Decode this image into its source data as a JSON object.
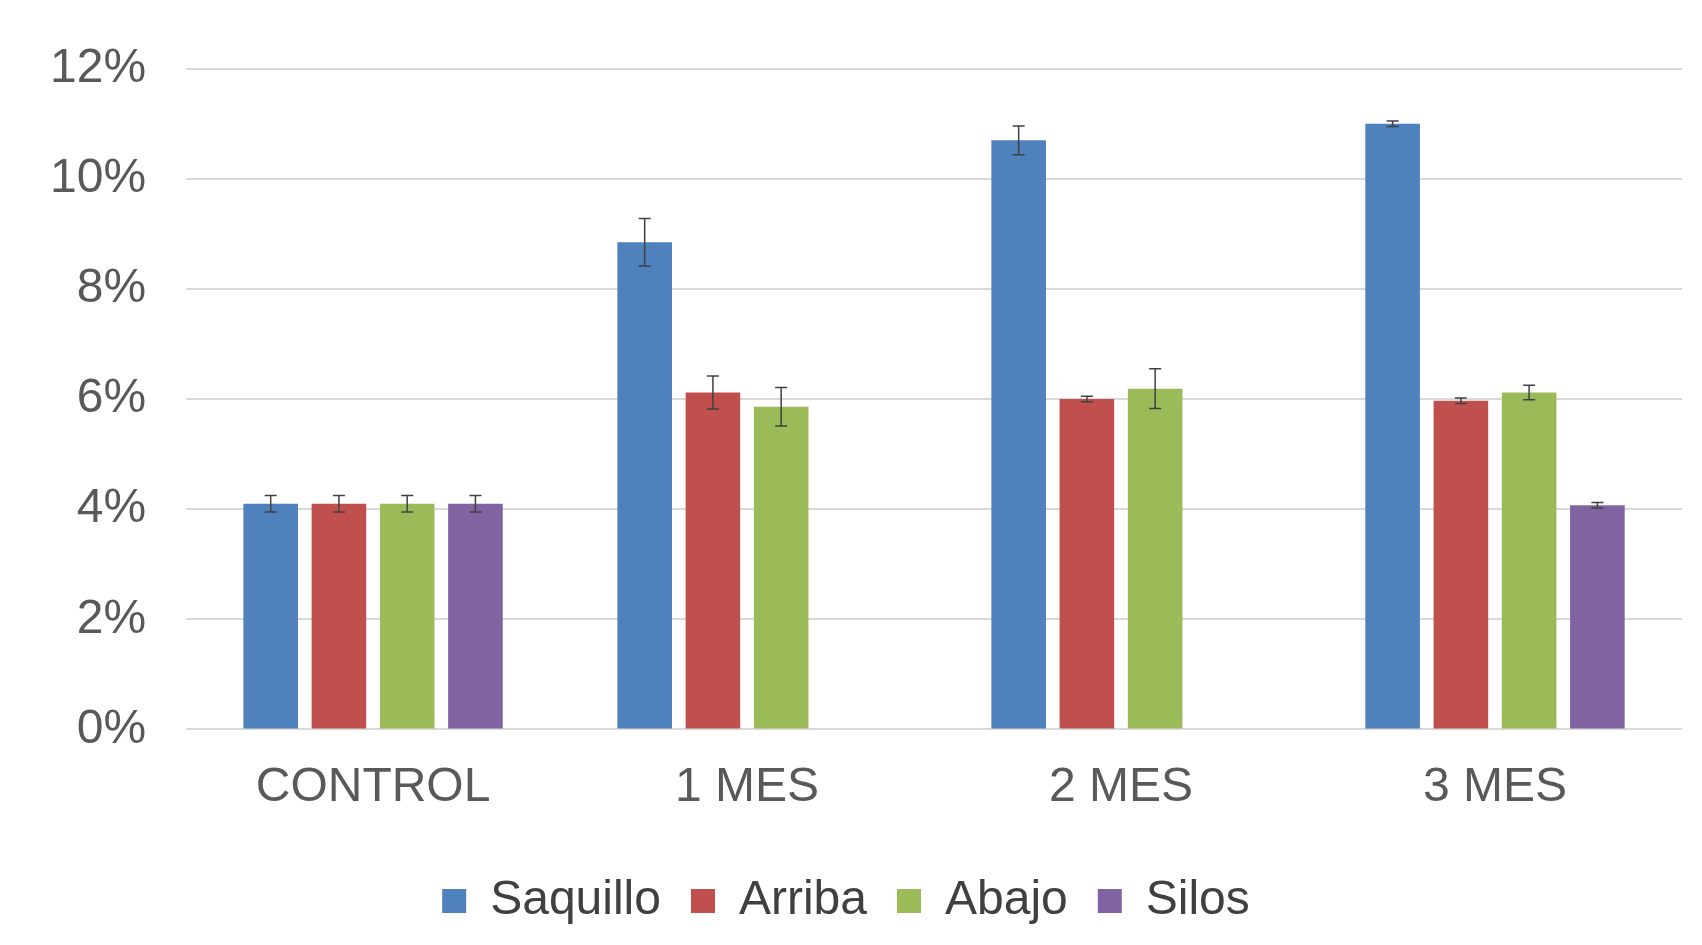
{
  "chart_data": {
    "type": "bar",
    "categories": [
      "CONTROL",
      "1 MES",
      "2 MES",
      "3 MES"
    ],
    "series": [
      {
        "name": "Saquillo",
        "color": "#4f81bd",
        "values": [
          4.1,
          8.85,
          10.7,
          11.0
        ],
        "errors": [
          0.15,
          0.43,
          0.26,
          0.05
        ]
      },
      {
        "name": "Arriba",
        "color": "#c0504d",
        "values": [
          4.1,
          6.12,
          6.0,
          5.97
        ],
        "errors": [
          0.15,
          0.3,
          0.05,
          0.05
        ]
      },
      {
        "name": "Abajo",
        "color": "#9bbb59",
        "values": [
          4.1,
          5.86,
          6.19,
          6.12
        ],
        "errors": [
          0.15,
          0.35,
          0.36,
          0.13
        ]
      },
      {
        "name": "Silos",
        "color": "#8064a2",
        "values": [
          4.1,
          null,
          null,
          4.07
        ],
        "errors": [
          0.15,
          null,
          null,
          0.05
        ]
      }
    ],
    "ylim": [
      0,
      12
    ],
    "yticks": [
      {
        "value": 0,
        "label": "0%"
      },
      {
        "value": 2,
        "label": "2%"
      },
      {
        "value": 4,
        "label": "4%"
      },
      {
        "value": 6,
        "label": "6%"
      },
      {
        "value": 8,
        "label": "8%"
      },
      {
        "value": 10,
        "label": "10%"
      },
      {
        "value": 12,
        "label": "12%"
      }
    ],
    "grid": "y",
    "legend": "bottom"
  }
}
